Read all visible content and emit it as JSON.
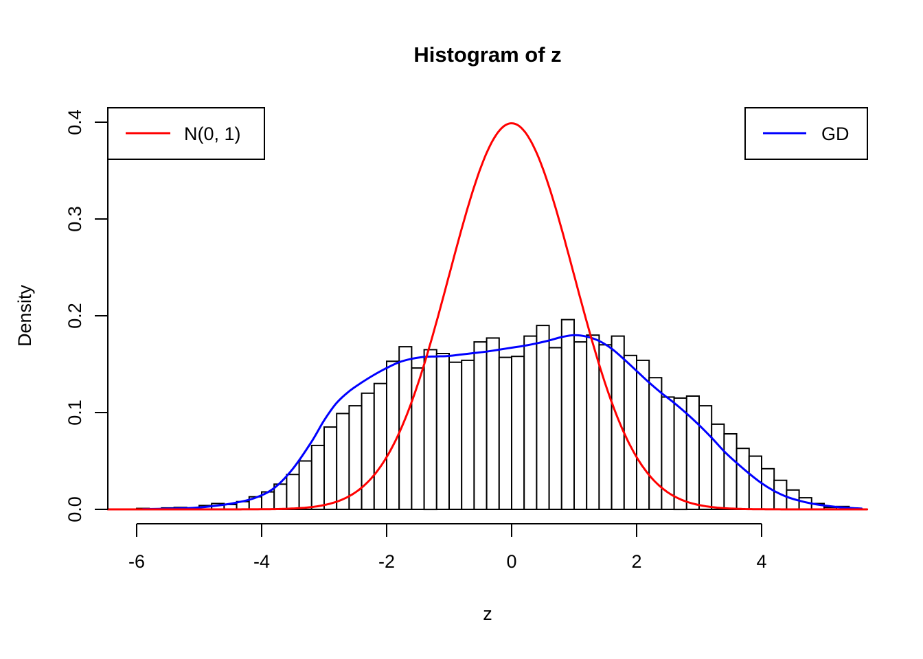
{
  "title": "Histogram of z",
  "axes": {
    "x": {
      "label": "z",
      "tick_labels": [
        "-6",
        "-4",
        "-2",
        "0",
        "2",
        "4"
      ],
      "tick_values": [
        -6,
        -4,
        -2,
        0,
        2,
        4
      ]
    },
    "y": {
      "label": "Density",
      "tick_labels": [
        "0.0",
        "0.1",
        "0.2",
        "0.3",
        "0.4"
      ],
      "tick_values": [
        0,
        0.1,
        0.2,
        0.3,
        0.4
      ]
    }
  },
  "legends": {
    "left": {
      "label": "N(0, 1)",
      "color": "#FF0000",
      "position": "top-left"
    },
    "right": {
      "label": "GD",
      "color": "#0000FF",
      "position": "top-right"
    }
  },
  "colors": {
    "normal_curve": "#FF0000",
    "gd_curve": "#0000FF",
    "bar_fill": "#FFFFFF",
    "bar_stroke": "#000000",
    "background": "#FFFFFF",
    "text": "#000000"
  },
  "chart_data": {
    "type": "bar",
    "subtype": "histogram-with-density-overlays",
    "title": "Histogram of z",
    "xlabel": "z",
    "ylabel": "Density",
    "xlim": [
      -6.45,
      5.68
    ],
    "ylim": [
      0,
      0.4
    ],
    "grid": false,
    "histogram": {
      "bin_start": -6.0,
      "bin_width": 0.2,
      "heights": [
        0.001,
        0,
        0.0015,
        0.002,
        0,
        0.004,
        0.006,
        0.005,
        0.008,
        0.013,
        0.018,
        0.026,
        0.036,
        0.05,
        0.066,
        0.085,
        0.099,
        0.107,
        0.12,
        0.13,
        0.153,
        0.168,
        0.146,
        0.165,
        0.161,
        0.152,
        0.154,
        0.173,
        0.177,
        0.157,
        0.158,
        0.179,
        0.19,
        0.167,
        0.196,
        0.173,
        0.18,
        0.17,
        0.179,
        0.159,
        0.154,
        0.136,
        0.116,
        0.115,
        0.117,
        0.107,
        0.088,
        0.078,
        0.063,
        0.055,
        0.042,
        0.03,
        0.02,
        0.012,
        0.006,
        0.002,
        0.003
      ]
    },
    "series": [
      {
        "name": "N(0, 1)",
        "type": "analytic-normal-pdf",
        "mean": 0,
        "sd": 1,
        "peak_density": 0.3989,
        "color": "#FF0000",
        "x_range": [
          -6.45,
          5.68
        ]
      },
      {
        "name": "GD",
        "type": "density-curve",
        "color": "#0000FF",
        "points": [
          [
            -5.9,
            0.0003
          ],
          [
            -5.5,
            0.0008
          ],
          [
            -5.1,
            0.0015
          ],
          [
            -4.7,
            0.004
          ],
          [
            -4.4,
            0.007
          ],
          [
            -4.1,
            0.012
          ],
          [
            -3.8,
            0.022
          ],
          [
            -3.5,
            0.042
          ],
          [
            -3.2,
            0.07
          ],
          [
            -3.0,
            0.092
          ],
          [
            -2.8,
            0.11
          ],
          [
            -2.6,
            0.122
          ],
          [
            -2.4,
            0.131
          ],
          [
            -2.2,
            0.139
          ],
          [
            -2.0,
            0.146
          ],
          [
            -1.8,
            0.152
          ],
          [
            -1.6,
            0.1555
          ],
          [
            -1.4,
            0.1575
          ],
          [
            -1.2,
            0.158
          ],
          [
            -1.0,
            0.1585
          ],
          [
            -0.8,
            0.16
          ],
          [
            -0.6,
            0.1615
          ],
          [
            -0.4,
            0.163
          ],
          [
            -0.2,
            0.165
          ],
          [
            0.0,
            0.167
          ],
          [
            0.2,
            0.169
          ],
          [
            0.4,
            0.1715
          ],
          [
            0.6,
            0.1745
          ],
          [
            0.8,
            0.178
          ],
          [
            1.0,
            0.18
          ],
          [
            1.2,
            0.1785
          ],
          [
            1.4,
            0.174
          ],
          [
            1.6,
            0.166
          ],
          [
            1.8,
            0.155
          ],
          [
            2.0,
            0.143
          ],
          [
            2.2,
            0.131
          ],
          [
            2.4,
            0.12
          ],
          [
            2.6,
            0.11
          ],
          [
            2.8,
            0.099
          ],
          [
            3.0,
            0.087
          ],
          [
            3.2,
            0.074
          ],
          [
            3.4,
            0.06
          ],
          [
            3.6,
            0.048
          ],
          [
            3.8,
            0.037
          ],
          [
            4.0,
            0.027
          ],
          [
            4.2,
            0.019
          ],
          [
            4.4,
            0.013
          ],
          [
            4.6,
            0.009
          ],
          [
            4.8,
            0.006
          ],
          [
            5.0,
            0.004
          ],
          [
            5.2,
            0.0025
          ],
          [
            5.4,
            0.0015
          ],
          [
            5.6,
            0.0008
          ]
        ]
      }
    ],
    "legend_position": "top-left and top-right inside plot"
  }
}
